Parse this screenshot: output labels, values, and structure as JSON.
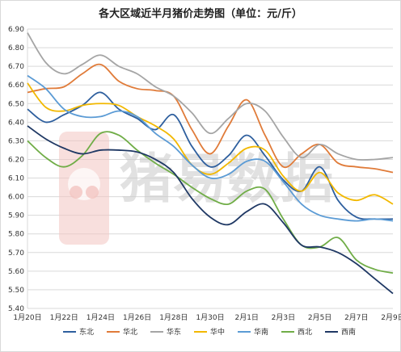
{
  "chart_data": {
    "type": "line",
    "title": "各大区域近半月猪价走势图（单位：元/斤）",
    "xlabel": "",
    "ylabel": "",
    "x": [
      "1月20日",
      "1月21日",
      "1月22日",
      "1月23日",
      "1月24日",
      "1月25日",
      "1月26日",
      "1月27日",
      "1月28日",
      "1月29日",
      "1月30日",
      "1月31日",
      "2月1日",
      "2月2日",
      "2月3日",
      "2月4日",
      "2月5日",
      "2月6日",
      "2月7日",
      "2月8日",
      "2月9日"
    ],
    "x_tick_labels": [
      "1月20日",
      "1月22日",
      "1月24日",
      "1月26日",
      "1月28日",
      "1月30日",
      "2月1日",
      "2月3日",
      "2月5日",
      "2月7日",
      "2月9日"
    ],
    "ylim": [
      5.4,
      6.9
    ],
    "y_ticks": [
      "5.40",
      "5.50",
      "5.60",
      "5.70",
      "5.80",
      "5.90",
      "6.00",
      "6.10",
      "6.20",
      "6.30",
      "6.40",
      "6.50",
      "6.60",
      "6.70",
      "6.80",
      "6.90"
    ],
    "grid": true,
    "legend_position": "bottom",
    "series": [
      {
        "name": "东北",
        "color": "#2e5f9e",
        "values": [
          6.47,
          6.4,
          6.44,
          6.49,
          6.56,
          6.47,
          6.42,
          6.36,
          6.44,
          6.27,
          6.16,
          6.22,
          6.33,
          6.22,
          6.09,
          6.03,
          6.16,
          5.98,
          5.89,
          5.88,
          5.88
        ]
      },
      {
        "name": "华北",
        "color": "#e07b39",
        "values": [
          6.56,
          6.58,
          6.59,
          6.66,
          6.71,
          6.62,
          6.58,
          6.57,
          6.54,
          6.36,
          6.23,
          6.38,
          6.52,
          6.33,
          6.16,
          6.23,
          6.28,
          6.18,
          6.16,
          6.15,
          6.13
        ]
      },
      {
        "name": "华东",
        "color": "#a5a5a5",
        "values": [
          6.88,
          6.72,
          6.66,
          6.71,
          6.76,
          6.7,
          6.66,
          6.59,
          6.54,
          6.45,
          6.34,
          6.42,
          6.5,
          6.46,
          6.32,
          6.21,
          6.28,
          6.23,
          6.2,
          6.2,
          6.21
        ]
      },
      {
        "name": "华中",
        "color": "#f2b800",
        "values": [
          6.61,
          6.48,
          6.46,
          6.49,
          6.5,
          6.49,
          6.43,
          6.38,
          6.31,
          6.17,
          6.12,
          6.18,
          6.26,
          6.25,
          6.11,
          6.03,
          6.13,
          6.02,
          5.98,
          6.01,
          5.96
        ]
      },
      {
        "name": "华南",
        "color": "#5b9bd5",
        "values": [
          6.65,
          6.58,
          6.47,
          6.43,
          6.43,
          6.46,
          6.43,
          6.34,
          6.27,
          6.17,
          6.1,
          6.12,
          6.19,
          6.19,
          6.08,
          5.96,
          5.9,
          5.88,
          5.87,
          5.88,
          5.87
        ]
      },
      {
        "name": "西北",
        "color": "#70ad47",
        "values": [
          6.3,
          6.21,
          6.16,
          6.22,
          6.34,
          6.33,
          6.25,
          6.18,
          6.12,
          6.05,
          5.99,
          5.96,
          6.03,
          6.04,
          5.88,
          5.74,
          5.73,
          5.78,
          5.66,
          5.61,
          5.59
        ]
      },
      {
        "name": "西南",
        "color": "#1f3864",
        "values": [
          6.38,
          6.31,
          6.26,
          6.23,
          6.25,
          6.25,
          6.24,
          6.2,
          6.13,
          5.99,
          5.89,
          5.85,
          5.92,
          5.96,
          5.86,
          5.74,
          5.73,
          5.7,
          5.64,
          5.56,
          5.48
        ]
      }
    ]
  },
  "watermark": {
    "text": "猪易数据",
    "logo_color": "#e8504a"
  }
}
